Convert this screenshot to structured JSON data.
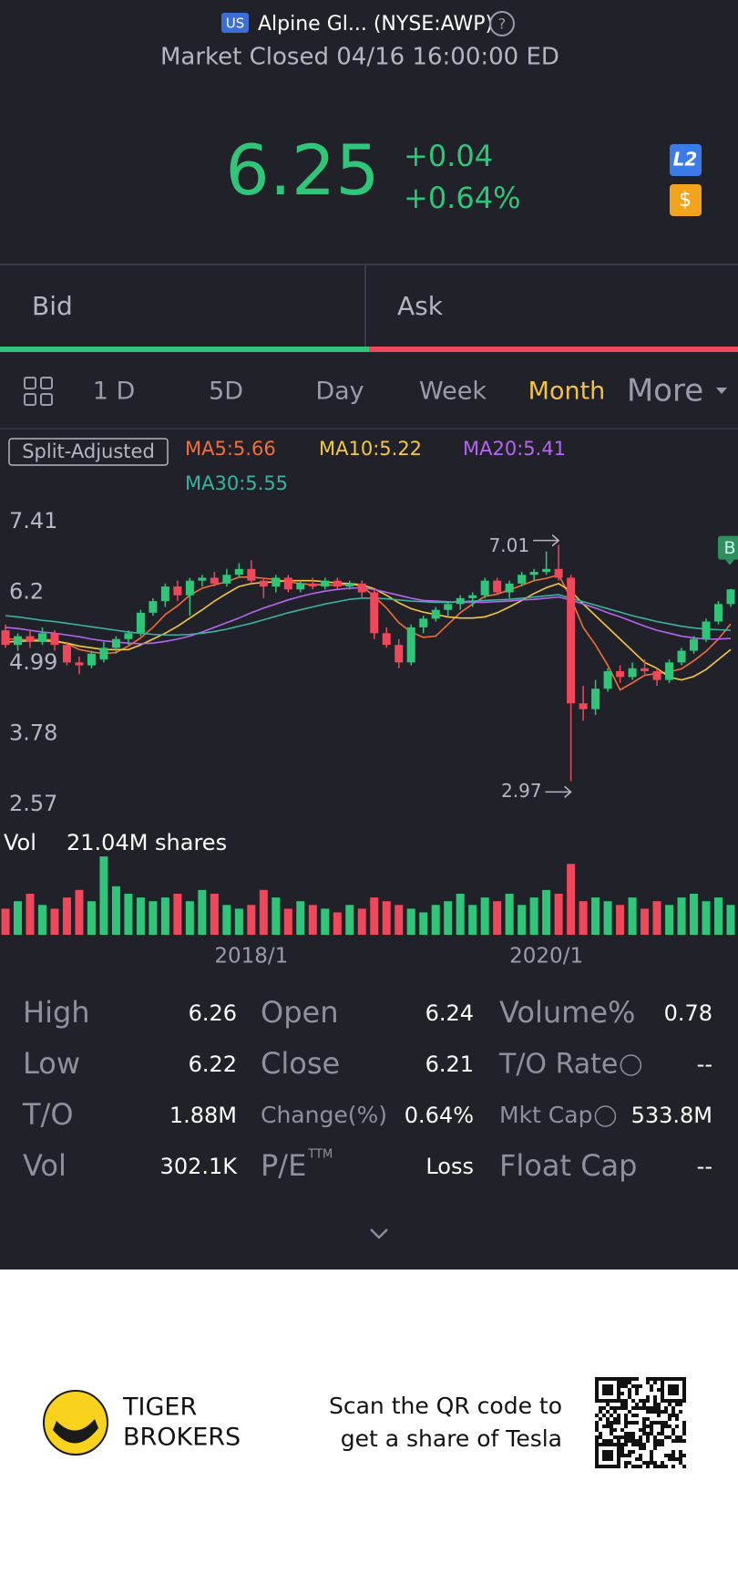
{
  "header": {
    "market_badge": "US",
    "name": "Alpine Gl... (NYSE:AWP)",
    "status": "Market Closed 04/16 16:00:00 ED",
    "price": "6.25",
    "change": "+0.04",
    "change_pct": "+0.64%",
    "badge_l2": "L2",
    "badge_dollar": "$"
  },
  "quote": {
    "bid": "Bid",
    "ask": "Ask"
  },
  "tabs": [
    "1 D",
    "5D",
    "Day",
    "Week",
    "Month",
    "More"
  ],
  "active_tab": 4,
  "adjust_label": "Split-Adjusted",
  "chart_data": {
    "type": "candlestick",
    "categories": [
      null,
      null,
      null,
      null,
      null,
      null,
      null,
      null,
      null,
      null,
      null,
      null,
      null,
      null,
      null,
      null,
      null,
      null,
      null,
      null,
      "2018/1",
      null,
      null,
      null,
      null,
      null,
      null,
      null,
      null,
      null,
      null,
      null,
      null,
      null,
      null,
      null,
      null,
      null,
      null,
      null,
      null,
      null,
      null,
      null,
      "2020/1",
      null,
      null,
      null,
      null,
      null,
      null,
      null,
      null,
      null,
      null,
      null,
      null,
      null,
      null,
      null
    ],
    "candles": [
      [
        5.55,
        5.65,
        5.25,
        5.3
      ],
      [
        5.3,
        5.5,
        5.2,
        5.45
      ],
      [
        5.45,
        5.55,
        5.25,
        5.35
      ],
      [
        5.35,
        5.6,
        5.3,
        5.5
      ],
      [
        5.5,
        5.55,
        5.2,
        5.3
      ],
      [
        5.3,
        5.35,
        4.95,
        5.0
      ],
      [
        5.0,
        5.1,
        4.8,
        4.95
      ],
      [
        4.95,
        5.2,
        4.9,
        5.15
      ],
      [
        5.05,
        5.35,
        5.0,
        5.25
      ],
      [
        5.25,
        5.45,
        5.15,
        5.4
      ],
      [
        5.4,
        5.55,
        5.3,
        5.5
      ],
      [
        5.5,
        5.9,
        5.45,
        5.85
      ],
      [
        5.85,
        6.1,
        5.8,
        6.05
      ],
      [
        6.05,
        6.35,
        5.95,
        6.3
      ],
      [
        6.3,
        6.4,
        6.05,
        6.15
      ],
      [
        6.15,
        6.45,
        5.8,
        6.4
      ],
      [
        6.4,
        6.5,
        6.3,
        6.45
      ],
      [
        6.45,
        6.55,
        6.3,
        6.35
      ],
      [
        6.35,
        6.6,
        6.3,
        6.5
      ],
      [
        6.5,
        6.7,
        6.45,
        6.6
      ],
      [
        6.6,
        6.75,
        6.35,
        6.4
      ],
      [
        6.4,
        6.45,
        6.1,
        6.3
      ],
      [
        6.3,
        6.5,
        6.2,
        6.45
      ],
      [
        6.45,
        6.5,
        6.2,
        6.25
      ],
      [
        6.25,
        6.4,
        6.2,
        6.35
      ],
      [
        6.35,
        6.45,
        6.25,
        6.3
      ],
      [
        6.3,
        6.45,
        6.25,
        6.4
      ],
      [
        6.4,
        6.45,
        6.25,
        6.3
      ],
      [
        6.3,
        6.4,
        6.25,
        6.35
      ],
      [
        6.35,
        6.4,
        6.1,
        6.2
      ],
      [
        6.2,
        6.25,
        5.4,
        5.5
      ],
      [
        5.5,
        5.6,
        5.25,
        5.3
      ],
      [
        5.3,
        5.4,
        4.9,
        5.0
      ],
      [
        5.0,
        5.65,
        4.95,
        5.6
      ],
      [
        5.6,
        5.8,
        5.5,
        5.75
      ],
      [
        5.75,
        5.95,
        5.7,
        5.9
      ],
      [
        5.9,
        6.05,
        5.8,
        6.0
      ],
      [
        6.0,
        6.15,
        5.9,
        6.1
      ],
      [
        6.1,
        6.2,
        5.95,
        6.15
      ],
      [
        6.15,
        6.45,
        6.1,
        6.4
      ],
      [
        6.4,
        6.45,
        6.15,
        6.2
      ],
      [
        6.2,
        6.4,
        6.1,
        6.35
      ],
      [
        6.35,
        6.55,
        6.3,
        6.5
      ],
      [
        6.5,
        6.6,
        6.4,
        6.55
      ],
      [
        6.55,
        6.9,
        6.5,
        6.6
      ],
      [
        6.6,
        7.01,
        6.4,
        6.45
      ],
      [
        6.45,
        6.5,
        2.97,
        4.3
      ],
      [
        4.3,
        4.6,
        4.0,
        4.2
      ],
      [
        4.2,
        4.7,
        4.1,
        4.55
      ],
      [
        4.55,
        4.9,
        4.5,
        4.85
      ],
      [
        4.85,
        4.95,
        4.65,
        4.75
      ],
      [
        4.75,
        5.0,
        4.7,
        4.9
      ],
      [
        4.9,
        5.05,
        4.8,
        4.85
      ],
      [
        4.85,
        4.9,
        4.6,
        4.7
      ],
      [
        4.7,
        5.05,
        4.65,
        5.0
      ],
      [
        5.0,
        5.25,
        4.95,
        5.2
      ],
      [
        5.2,
        5.45,
        5.15,
        5.4
      ],
      [
        5.4,
        5.75,
        5.35,
        5.7
      ],
      [
        5.7,
        6.05,
        5.65,
        6.0
      ],
      [
        6.0,
        6.26,
        5.95,
        6.25
      ]
    ],
    "up_color": "#2fc67a",
    "down_color": "#f0475a",
    "series": [
      {
        "name": "MA5:5.66",
        "color": "#f46d3a",
        "values": [
          5.4,
          5.4,
          5.38,
          5.4,
          5.38,
          5.32,
          5.22,
          5.18,
          5.15,
          5.17,
          5.28,
          5.42,
          5.6,
          5.82,
          5.97,
          6.15,
          6.27,
          6.33,
          6.38,
          6.46,
          6.46,
          6.44,
          6.42,
          6.38,
          6.35,
          6.33,
          6.33,
          6.32,
          6.34,
          6.31,
          6.13,
          5.93,
          5.68,
          5.52,
          5.43,
          5.45,
          5.65,
          5.85,
          6.0,
          6.13,
          6.17,
          6.24,
          6.32,
          6.4,
          6.44,
          6.5,
          6.1,
          5.6,
          5.3,
          4.95,
          4.53,
          4.65,
          4.78,
          4.81,
          4.84,
          4.89,
          5.03,
          5.19,
          5.4,
          5.66
        ]
      },
      {
        "name": "MA10:5.22",
        "color": "#f5c842",
        "values": [
          5.35,
          5.36,
          5.37,
          5.37,
          5.36,
          5.33,
          5.28,
          5.25,
          5.22,
          5.22,
          5.22,
          5.3,
          5.4,
          5.5,
          5.62,
          5.76,
          5.9,
          6.05,
          6.18,
          6.3,
          6.35,
          6.37,
          6.38,
          6.4,
          6.4,
          6.4,
          6.38,
          6.36,
          6.35,
          6.33,
          6.26,
          6.15,
          6.02,
          5.92,
          5.86,
          5.82,
          5.78,
          5.76,
          5.76,
          5.78,
          5.85,
          5.95,
          6.06,
          6.18,
          6.28,
          6.35,
          6.22,
          6.0,
          5.8,
          5.6,
          5.4,
          5.2,
          5.0,
          4.9,
          4.75,
          4.7,
          4.76,
          4.88,
          5.05,
          5.22
        ]
      },
      {
        "name": "MA20:5.41",
        "color": "#b466f0",
        "values": [
          5.6,
          5.58,
          5.55,
          5.52,
          5.5,
          5.47,
          5.44,
          5.4,
          5.37,
          5.35,
          5.33,
          5.32,
          5.33,
          5.36,
          5.4,
          5.45,
          5.52,
          5.6,
          5.68,
          5.76,
          5.85,
          5.93,
          6.0,
          6.07,
          6.13,
          6.18,
          6.22,
          6.25,
          6.27,
          6.28,
          6.25,
          6.2,
          6.15,
          6.1,
          6.06,
          6.05,
          6.04,
          6.03,
          6.03,
          6.03,
          6.04,
          6.05,
          6.07,
          6.08,
          6.1,
          6.12,
          6.07,
          6.0,
          5.93,
          5.85,
          5.78,
          5.7,
          5.62,
          5.55,
          5.5,
          5.45,
          5.42,
          5.4,
          5.4,
          5.41
        ]
      },
      {
        "name": "MA30:5.55",
        "color": "#3bb3a0",
        "values": [
          5.8,
          5.78,
          5.75,
          5.72,
          5.7,
          5.67,
          5.64,
          5.61,
          5.58,
          5.55,
          5.52,
          5.5,
          5.48,
          5.47,
          5.47,
          5.48,
          5.5,
          5.53,
          5.57,
          5.62,
          5.67,
          5.73,
          5.79,
          5.85,
          5.9,
          5.95,
          6.0,
          6.04,
          6.08,
          6.1,
          6.1,
          6.09,
          6.07,
          6.05,
          6.04,
          6.03,
          6.03,
          6.04,
          6.05,
          6.06,
          6.07,
          6.08,
          6.1,
          6.12,
          6.14,
          6.16,
          6.1,
          6.04,
          5.98,
          5.92,
          5.86,
          5.8,
          5.75,
          5.7,
          5.66,
          5.62,
          5.59,
          5.57,
          5.56,
          5.55
        ]
      }
    ],
    "ylim": [
      2.57,
      7.41
    ],
    "yticks": [
      7.41,
      6.2,
      4.99,
      3.78,
      2.57
    ],
    "max_label": 7.01,
    "min_label": 2.97,
    "signal": "B",
    "volume_title": "Vol",
    "volume_label": "21.04M shares",
    "volume": [
      7,
      9,
      11,
      8,
      7,
      10,
      12,
      9,
      21,
      13,
      11,
      10,
      9,
      10,
      11,
      9,
      12,
      11,
      8,
      7,
      8,
      12,
      10,
      7,
      9,
      8,
      7,
      6,
      8,
      7,
      10,
      9,
      8,
      7,
      6,
      8,
      9,
      11,
      8,
      10,
      9,
      11,
      8,
      10,
      12,
      11,
      19,
      9,
      10,
      9,
      8,
      10,
      7,
      9,
      8,
      10,
      11,
      9,
      10,
      8
    ],
    "volume_ylim": [
      0,
      22
    ]
  },
  "stats": {
    "rows": [
      [
        "High",
        "6.26",
        "Open",
        "6.24",
        "Volume%",
        "0.78"
      ],
      [
        "Low",
        "6.22",
        "Close",
        "6.21",
        "T/O Rate",
        "--"
      ],
      [
        "T/O",
        "1.88M",
        "Change(%)",
        "0.64%",
        "Mkt Cap",
        "533.8M"
      ],
      [
        "Vol",
        "302.1K",
        "P/E",
        "Loss",
        "Float Cap",
        "--"
      ]
    ],
    "pe_sup": "TTM"
  },
  "footer": {
    "brand_1": "TIGER",
    "brand_2": "BROKERS",
    "promo_1": "Scan the QR code to",
    "promo_2": "get a share of Tesla"
  }
}
